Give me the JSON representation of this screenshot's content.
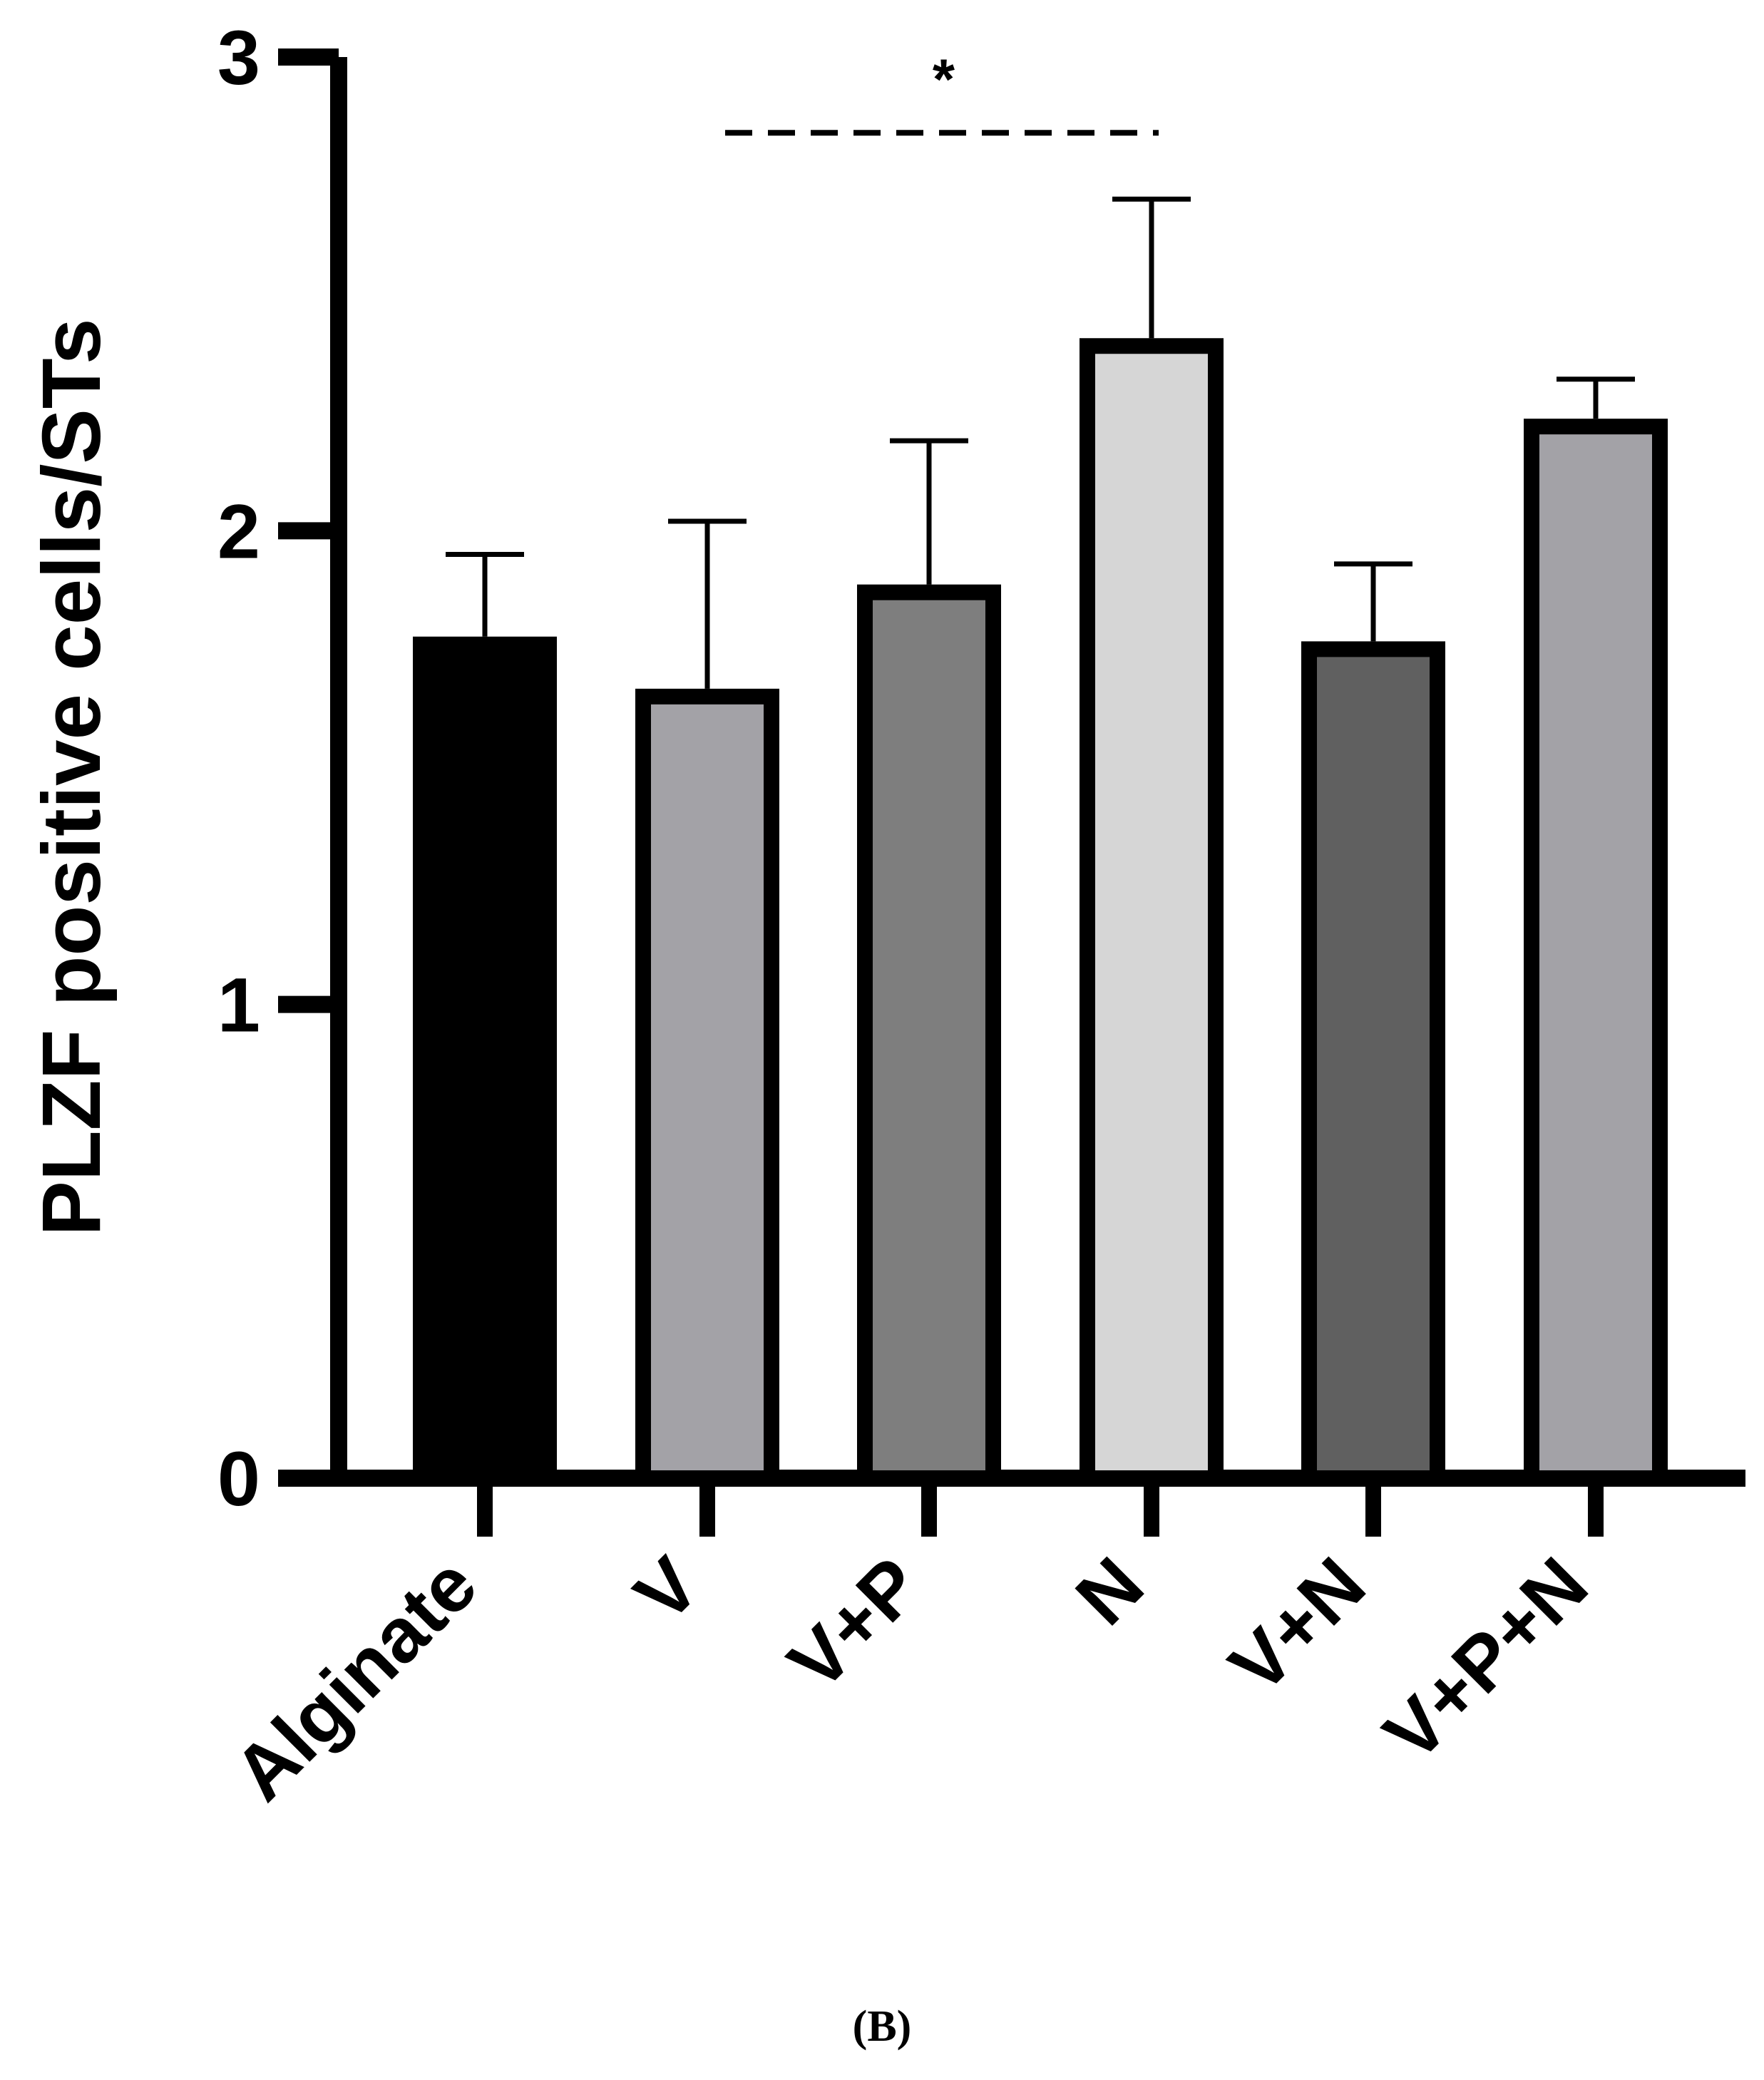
{
  "chart_data": {
    "type": "bar",
    "title": "",
    "xlabel": "",
    "ylabel": "PLZF positive cells/STs",
    "ylim": [
      0,
      3
    ],
    "yticks": [
      0,
      1,
      2,
      3
    ],
    "grid": false,
    "categories": [
      "Alginate",
      "V",
      "V+P",
      "N",
      "V+N",
      "V+P+N"
    ],
    "values": [
      1.76,
      1.65,
      1.87,
      2.39,
      1.75,
      2.22
    ],
    "errors": [
      0.19,
      0.37,
      0.32,
      0.31,
      0.18,
      0.1
    ],
    "bar_colors": [
      "#000000",
      "#a3a2a7",
      "#7e7e7e",
      "#d6d6d6",
      "#606060",
      "#a3a2a7"
    ],
    "significance": [
      {
        "from": "V",
        "to": "N",
        "label": "*",
        "y": 2.84
      }
    ]
  },
  "panel_label": "(B)"
}
